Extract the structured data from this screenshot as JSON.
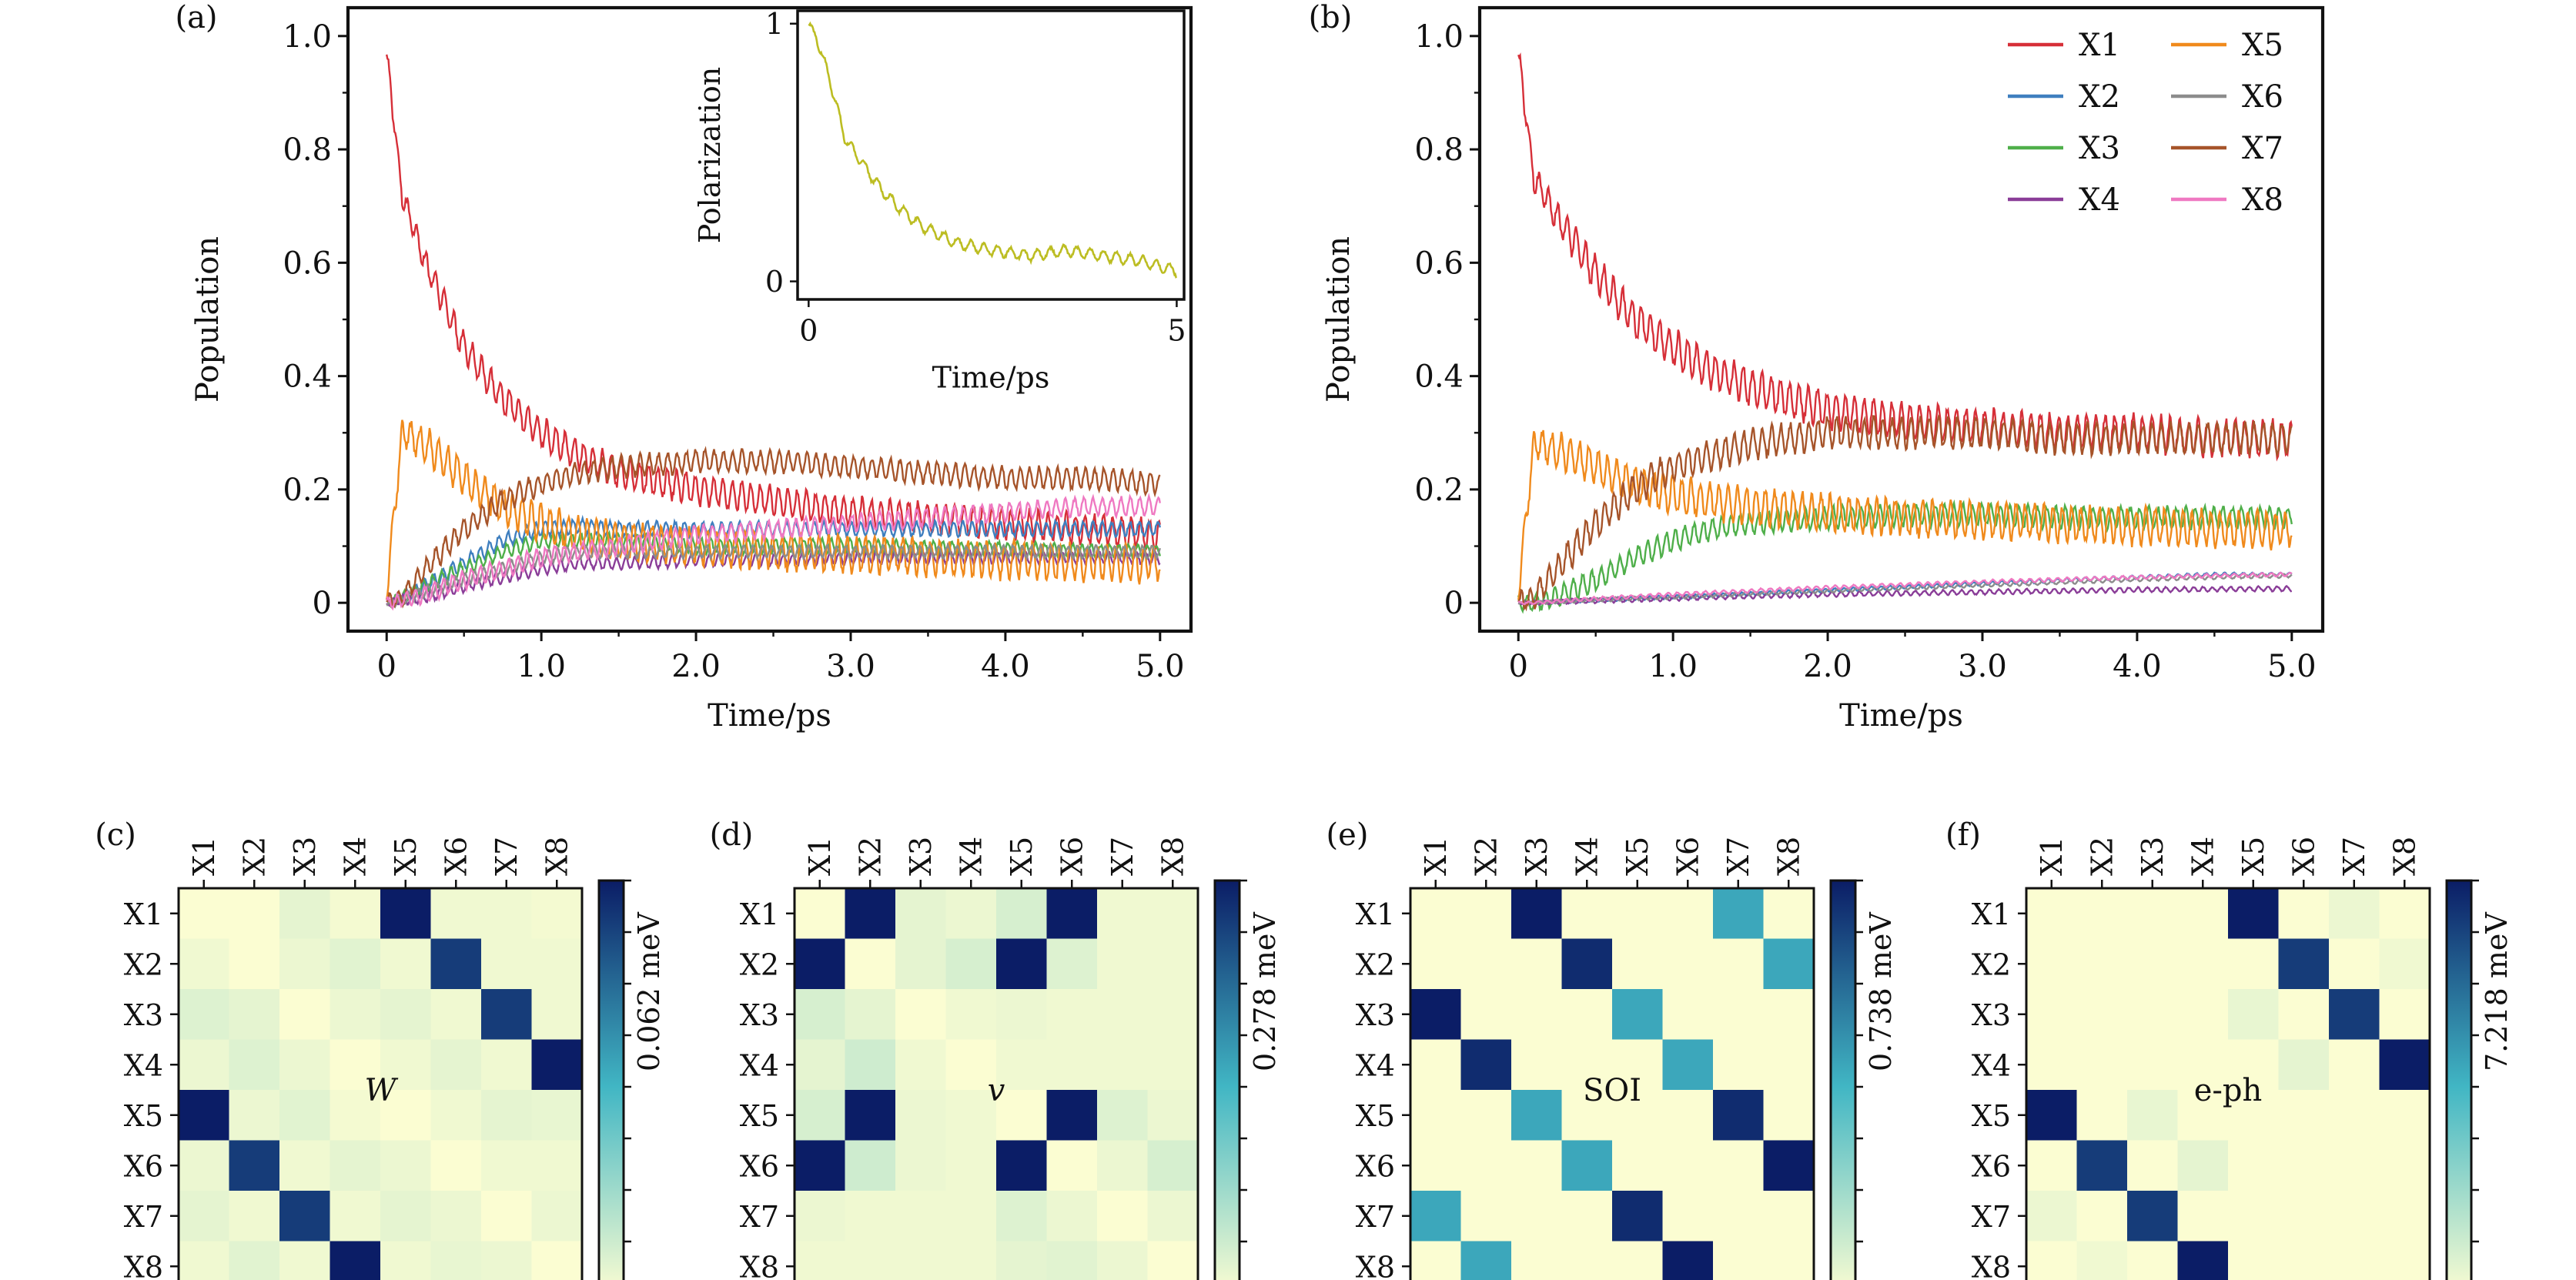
{
  "chart_data": [
    {
      "panel_label": "(a)",
      "type": "line",
      "xlabel": "Time/ps",
      "ylabel": "Population",
      "xlim": [
        -0.25,
        5.2
      ],
      "ylim": [
        -0.05,
        1.05
      ],
      "xticks": [
        {
          "v": 0,
          "label": "0"
        },
        {
          "v": 1,
          "label": "1.0"
        },
        {
          "v": 2,
          "label": "2.0"
        },
        {
          "v": 3,
          "label": "3.0"
        },
        {
          "v": 4,
          "label": "4.0"
        },
        {
          "v": 5,
          "label": "5.0"
        }
      ],
      "yticks": [
        {
          "v": 0,
          "label": "0"
        },
        {
          "v": 0.2,
          "label": "0.2"
        },
        {
          "v": 0.4,
          "label": "0.4"
        },
        {
          "v": 0.6,
          "label": "0.6"
        },
        {
          "v": 0.8,
          "label": "0.8"
        },
        {
          "v": 1.0,
          "label": "1.0"
        }
      ],
      "x": [
        0,
        0.1,
        0.25,
        0.5,
        0.75,
        1.0,
        1.25,
        1.5,
        2.0,
        2.5,
        3.0,
        3.5,
        4.0,
        4.5,
        5.0
      ],
      "series": [
        {
          "name": "X1",
          "values": [
            0.97,
            0.72,
            0.6,
            0.45,
            0.36,
            0.3,
            0.26,
            0.23,
            0.2,
            0.18,
            0.16,
            0.15,
            0.14,
            0.13,
            0.12
          ],
          "amp": 0.025
        },
        {
          "name": "X2",
          "values": [
            0,
            0.01,
            0.03,
            0.07,
            0.11,
            0.13,
            0.135,
            0.13,
            0.13,
            0.13,
            0.13,
            0.13,
            0.13,
            0.13,
            0.13
          ],
          "amp": 0.012
        },
        {
          "name": "X3",
          "values": [
            0,
            0.01,
            0.03,
            0.06,
            0.09,
            0.11,
            0.11,
            0.11,
            0.1,
            0.1,
            0.1,
            0.095,
            0.095,
            0.09,
            0.09
          ],
          "amp": 0.012
        },
        {
          "name": "X4",
          "values": [
            0,
            0.005,
            0.01,
            0.03,
            0.045,
            0.06,
            0.07,
            0.07,
            0.075,
            0.075,
            0.08,
            0.08,
            0.08,
            0.08,
            0.08
          ],
          "amp": 0.01
        },
        {
          "name": "X5",
          "values": [
            0.02,
            0.3,
            0.28,
            0.22,
            0.17,
            0.14,
            0.12,
            0.11,
            0.1,
            0.09,
            0.085,
            0.08,
            0.075,
            0.07,
            0.07
          ],
          "amp": 0.03
        },
        {
          "name": "X6",
          "values": [
            0,
            0.005,
            0.02,
            0.04,
            0.06,
            0.08,
            0.09,
            0.09,
            0.09,
            0.09,
            0.09,
            0.09,
            0.09,
            0.09,
            0.09
          ],
          "amp": 0.01
        },
        {
          "name": "X7",
          "values": [
            0,
            0.01,
            0.06,
            0.13,
            0.18,
            0.21,
            0.23,
            0.24,
            0.25,
            0.25,
            0.24,
            0.23,
            0.22,
            0.22,
            0.21
          ],
          "amp": 0.018
        },
        {
          "name": "X8",
          "values": [
            0,
            0.005,
            0.015,
            0.04,
            0.06,
            0.08,
            0.09,
            0.1,
            0.12,
            0.13,
            0.14,
            0.15,
            0.16,
            0.17,
            0.17
          ],
          "amp": 0.015
        }
      ],
      "inset": {
        "type": "line",
        "xlabel": "Time/ps",
        "ylabel": "Polarization",
        "xlim": [
          -0.15,
          5.1
        ],
        "ylim": [
          -0.07,
          1.05
        ],
        "xticks": [
          {
            "v": 0,
            "label": "0"
          },
          {
            "v": 5,
            "label": "5"
          }
        ],
        "yticks": [
          {
            "v": 0,
            "label": "0"
          },
          {
            "v": 1,
            "label": "1"
          }
        ],
        "x": [
          0,
          0.1,
          0.25,
          0.5,
          0.75,
          1.0,
          1.25,
          1.5,
          2.0,
          2.5,
          3.0,
          3.5,
          4.0,
          4.5,
          5.0
        ],
        "series": [
          {
            "name": "",
            "values": [
              1.0,
              0.95,
              0.82,
              0.55,
              0.45,
              0.35,
              0.28,
              0.22,
              0.15,
              0.12,
              0.1,
              0.12,
              0.1,
              0.08,
              0.04
            ],
            "amp": 0.02
          }
        ]
      }
    },
    {
      "panel_label": "(b)",
      "type": "line",
      "xlabel": "Time/ps",
      "ylabel": "Population",
      "xlim": [
        -0.25,
        5.2
      ],
      "ylim": [
        -0.05,
        1.05
      ],
      "xticks": [
        {
          "v": 0,
          "label": "0"
        },
        {
          "v": 1,
          "label": "1.0"
        },
        {
          "v": 2,
          "label": "2.0"
        },
        {
          "v": 3,
          "label": "3.0"
        },
        {
          "v": 4,
          "label": "4.0"
        },
        {
          "v": 5,
          "label": "5.0"
        }
      ],
      "yticks": [
        {
          "v": 0,
          "label": "0"
        },
        {
          "v": 0.2,
          "label": "0.2"
        },
        {
          "v": 0.4,
          "label": "0.4"
        },
        {
          "v": 0.6,
          "label": "0.6"
        },
        {
          "v": 0.8,
          "label": "0.8"
        },
        {
          "v": 1.0,
          "label": "1.0"
        }
      ],
      "x": [
        0,
        0.1,
        0.25,
        0.5,
        0.75,
        1.0,
        1.25,
        1.5,
        2.0,
        2.5,
        3.0,
        3.5,
        4.0,
        4.5,
        5.0
      ],
      "legend": "top-right",
      "series": [
        {
          "name": "X1",
          "values": [
            0.97,
            0.75,
            0.68,
            0.58,
            0.5,
            0.45,
            0.41,
            0.38,
            0.34,
            0.32,
            0.31,
            0.3,
            0.3,
            0.29,
            0.29
          ],
          "amp": 0.03
        },
        {
          "name": "X2",
          "values": [
            0,
            0,
            0.002,
            0.005,
            0.008,
            0.01,
            0.013,
            0.016,
            0.022,
            0.028,
            0.034,
            0.04,
            0.045,
            0.05,
            0.05
          ],
          "amp": 0.003
        },
        {
          "name": "X3",
          "values": [
            0,
            0,
            0.01,
            0.04,
            0.08,
            0.11,
            0.13,
            0.14,
            0.15,
            0.155,
            0.155,
            0.15,
            0.15,
            0.15,
            0.15
          ],
          "amp": 0.018
        },
        {
          "name": "X4",
          "values": [
            0,
            0,
            0.002,
            0.004,
            0.006,
            0.008,
            0.01,
            0.012,
            0.015,
            0.017,
            0.019,
            0.021,
            0.023,
            0.024,
            0.025
          ],
          "amp": 0.004
        },
        {
          "name": "X5",
          "values": [
            0.02,
            0.28,
            0.27,
            0.24,
            0.21,
            0.19,
            0.18,
            0.17,
            0.16,
            0.15,
            0.145,
            0.14,
            0.135,
            0.13,
            0.13
          ],
          "amp": 0.03
        },
        {
          "name": "X6",
          "values": [
            0,
            0,
            0.002,
            0.005,
            0.008,
            0.01,
            0.013,
            0.016,
            0.021,
            0.026,
            0.031,
            0.036,
            0.041,
            0.045,
            0.048
          ],
          "amp": 0.003
        },
        {
          "name": "X7",
          "values": [
            0,
            0.01,
            0.06,
            0.14,
            0.2,
            0.24,
            0.26,
            0.28,
            0.3,
            0.3,
            0.3,
            0.29,
            0.29,
            0.29,
            0.29
          ],
          "amp": 0.025
        },
        {
          "name": "X8",
          "values": [
            0,
            0,
            0.003,
            0.007,
            0.011,
            0.015,
            0.018,
            0.021,
            0.027,
            0.032,
            0.037,
            0.041,
            0.045,
            0.048,
            0.05
          ],
          "amp": 0.003
        }
      ]
    },
    {
      "panel_label": "(c)",
      "type": "heatmap",
      "center_label": "W",
      "center_italic": true,
      "row_labels": [
        "X1",
        "X2",
        "X3",
        "X4",
        "X5",
        "X6",
        "X7",
        "X8"
      ],
      "col_labels": [
        "X1",
        "X2",
        "X3",
        "X4",
        "X5",
        "X6",
        "X7",
        "X8"
      ],
      "colorbar_max_label": "0.062 meV",
      "matrix": [
        [
          0.0,
          0.0,
          0.06,
          0.02,
          1.0,
          0.03,
          0.03,
          0.02
        ],
        [
          0.03,
          0.0,
          0.04,
          0.07,
          0.03,
          0.9,
          0.03,
          0.03
        ],
        [
          0.08,
          0.06,
          0.0,
          0.04,
          0.06,
          0.03,
          0.9,
          0.03
        ],
        [
          0.04,
          0.08,
          0.04,
          0.0,
          0.03,
          0.06,
          0.03,
          1.0
        ],
        [
          1.0,
          0.04,
          0.07,
          0.02,
          0.0,
          0.03,
          0.06,
          0.05
        ],
        [
          0.04,
          0.9,
          0.03,
          0.06,
          0.04,
          0.0,
          0.03,
          0.03
        ],
        [
          0.06,
          0.03,
          0.9,
          0.03,
          0.06,
          0.04,
          0.0,
          0.04
        ],
        [
          0.03,
          0.07,
          0.03,
          1.0,
          0.03,
          0.05,
          0.04,
          0.0
        ]
      ]
    },
    {
      "panel_label": "(d)",
      "type": "heatmap",
      "center_label": "v",
      "center_italic": true,
      "row_labels": [
        "X1",
        "X2",
        "X3",
        "X4",
        "X5",
        "X6",
        "X7",
        "X8"
      ],
      "col_labels": [
        "X1",
        "X2",
        "X3",
        "X4",
        "X5",
        "X6",
        "X7",
        "X8"
      ],
      "colorbar_max_label": "0.278 meV",
      "matrix": [
        [
          0.0,
          1.0,
          0.06,
          0.04,
          0.1,
          1.0,
          0.03,
          0.03
        ],
        [
          1.0,
          0.0,
          0.06,
          0.1,
          1.0,
          0.08,
          0.03,
          0.03
        ],
        [
          0.1,
          0.06,
          0.0,
          0.03,
          0.04,
          0.03,
          0.03,
          0.03
        ],
        [
          0.06,
          0.12,
          0.03,
          0.0,
          0.03,
          0.03,
          0.03,
          0.03
        ],
        [
          0.1,
          1.0,
          0.04,
          0.03,
          0.0,
          1.0,
          0.08,
          0.04
        ],
        [
          1.0,
          0.12,
          0.04,
          0.03,
          1.0,
          0.0,
          0.04,
          0.1
        ],
        [
          0.04,
          0.03,
          0.03,
          0.03,
          0.08,
          0.04,
          0.0,
          0.04
        ],
        [
          0.03,
          0.03,
          0.03,
          0.03,
          0.06,
          0.07,
          0.04,
          0.0
        ]
      ]
    },
    {
      "panel_label": "(e)",
      "type": "heatmap",
      "center_label": "SOI",
      "center_italic": false,
      "row_labels": [
        "X1",
        "X2",
        "X3",
        "X4",
        "X5",
        "X6",
        "X7",
        "X8"
      ],
      "col_labels": [
        "X1",
        "X2",
        "X3",
        "X4",
        "X5",
        "X6",
        "X7",
        "X8"
      ],
      "colorbar_max_label": "0.738 meV",
      "matrix": [
        [
          0.0,
          0.0,
          1.0,
          0.0,
          0.0,
          0.0,
          0.55,
          0.0
        ],
        [
          0.0,
          0.0,
          0.0,
          0.95,
          0.0,
          0.0,
          0.0,
          0.55
        ],
        [
          1.0,
          0.0,
          0.0,
          0.0,
          0.55,
          0.0,
          0.0,
          0.0
        ],
        [
          0.0,
          0.95,
          0.0,
          0.0,
          0.0,
          0.55,
          0.0,
          0.0
        ],
        [
          0.0,
          0.0,
          0.55,
          0.0,
          0.0,
          0.0,
          0.95,
          0.0
        ],
        [
          0.0,
          0.0,
          0.0,
          0.55,
          0.0,
          0.0,
          0.0,
          1.0
        ],
        [
          0.55,
          0.0,
          0.0,
          0.0,
          0.95,
          0.0,
          0.0,
          0.0
        ],
        [
          0.0,
          0.55,
          0.0,
          0.0,
          0.0,
          1.0,
          0.0,
          0.0
        ]
      ]
    },
    {
      "panel_label": "(f)",
      "type": "heatmap",
      "center_label": "e-ph",
      "center_italic": false,
      "row_labels": [
        "X1",
        "X2",
        "X3",
        "X4",
        "X5",
        "X6",
        "X7",
        "X8"
      ],
      "col_labels": [
        "X1",
        "X2",
        "X3",
        "X4",
        "X5",
        "X6",
        "X7",
        "X8"
      ],
      "colorbar_max_label": "7.218 meV",
      "matrix": [
        [
          0.0,
          0.0,
          0.0,
          0.0,
          1.0,
          0.0,
          0.04,
          0.0
        ],
        [
          0.0,
          0.0,
          0.0,
          0.0,
          0.0,
          0.9,
          0.0,
          0.03
        ],
        [
          0.0,
          0.0,
          0.0,
          0.0,
          0.05,
          0.0,
          0.9,
          0.0
        ],
        [
          0.0,
          0.0,
          0.0,
          0.0,
          0.0,
          0.06,
          0.0,
          1.0
        ],
        [
          1.0,
          0.0,
          0.05,
          0.0,
          0.0,
          0.0,
          0.0,
          0.0
        ],
        [
          0.0,
          0.9,
          0.0,
          0.06,
          0.0,
          0.0,
          0.0,
          0.0
        ],
        [
          0.04,
          0.0,
          0.9,
          0.0,
          0.0,
          0.0,
          0.0,
          0.0
        ],
        [
          0.0,
          0.03,
          0.0,
          1.0,
          0.0,
          0.0,
          0.0,
          0.0
        ]
      ]
    }
  ],
  "colors": {
    "X1": "#d62f38",
    "X2": "#3f7fbf",
    "X3": "#4faf4a",
    "X4": "#8a3d98",
    "X5": "#f08a1c",
    "X6": "#8c8c8c",
    "X7": "#a6542a",
    "X8": "#ef79c2",
    "inset": "#bcbd22",
    "heat_low": "#fbfdd2",
    "heat_mid": "#41b6c4",
    "heat_high": "#0b1d66"
  }
}
